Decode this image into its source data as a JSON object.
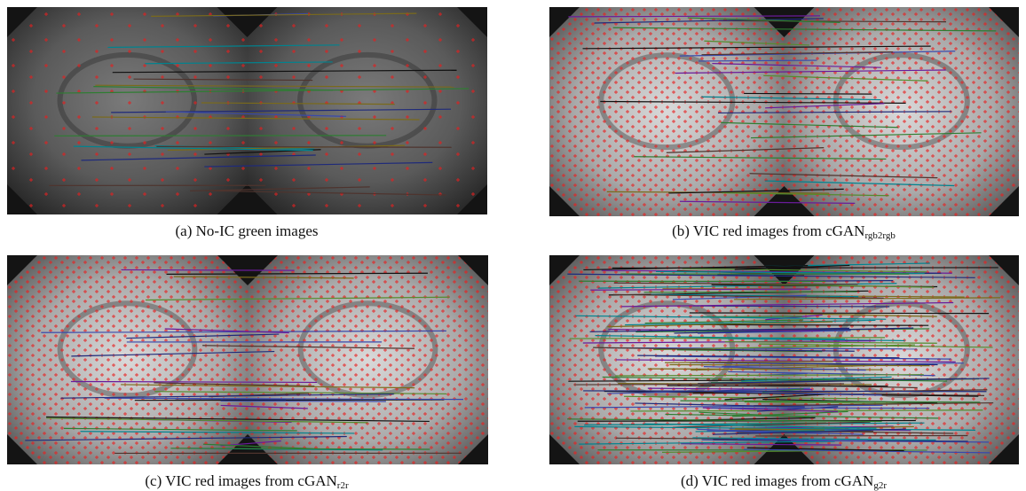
{
  "figures": [
    {
      "label": "(a)",
      "caption": "No-IC green images"
    },
    {
      "label": "(b)",
      "caption": "VIC red images from cGAN",
      "subscript": "rgb2rgb"
    },
    {
      "label": "(c)",
      "caption": "VIC red images from cGAN",
      "subscript": "r2r"
    },
    {
      "label": "(d)",
      "caption": "VIC red images from cGAN",
      "subscript": "g2r"
    }
  ]
}
